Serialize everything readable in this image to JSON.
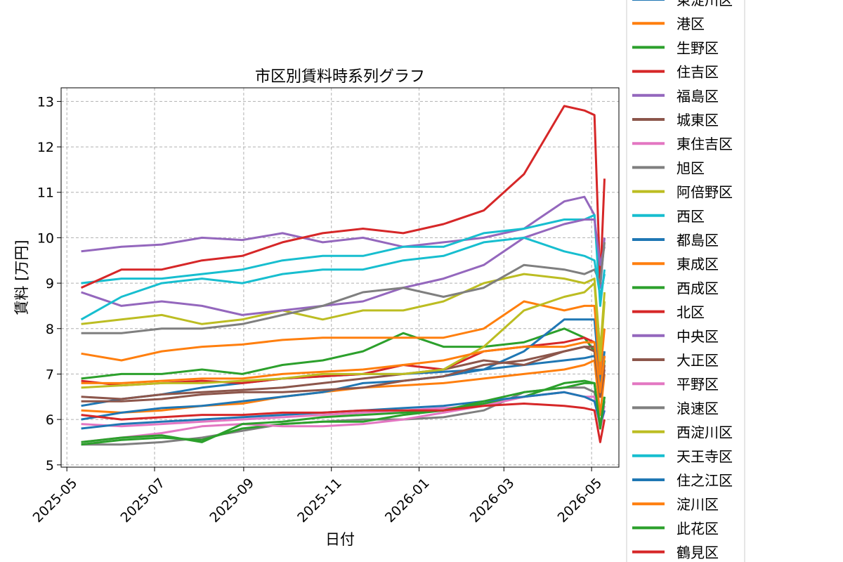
{
  "chart_data": {
    "type": "line",
    "title": "市区別賃料時系列グラフ",
    "xlabel": "日付",
    "ylabel": "賃料 [万円]",
    "ylim": [
      4.95,
      13.3
    ],
    "yticks": [
      5,
      6,
      7,
      8,
      9,
      10,
      11,
      12,
      13
    ],
    "xlim": [
      "2025-04-27",
      "2026-05-20"
    ],
    "xticks": [
      "2025-05",
      "2025-07",
      "2025-09",
      "2025-11",
      "2026-01",
      "2026-03",
      "2026-05"
    ],
    "grid": true,
    "legend_position": "outside-right",
    "x": [
      "2025-05-11",
      "2025-06-08",
      "2025-07-06",
      "2025-08-03",
      "2025-08-31",
      "2025-09-28",
      "2025-10-26",
      "2025-11-23",
      "2025-12-21",
      "2026-01-18",
      "2026-02-15",
      "2026-03-15",
      "2026-04-12",
      "2026-04-26",
      "2026-05-03",
      "2026-05-07",
      "2026-05-10"
    ],
    "series": [
      {
        "name": "東淀川区",
        "color": "#1f77b4",
        "values": [
          6.3,
          6.45,
          6.55,
          6.7,
          6.8,
          6.9,
          6.95,
          7.0,
          7.0,
          7.05,
          7.1,
          7.2,
          7.3,
          7.35,
          7.4,
          6.9,
          7.3
        ]
      },
      {
        "name": "港区",
        "color": "#ff7f0e",
        "values": [
          6.2,
          6.15,
          6.2,
          6.3,
          6.35,
          6.5,
          6.6,
          6.7,
          6.75,
          6.8,
          6.9,
          7.0,
          7.1,
          7.2,
          7.3,
          6.1,
          7.0
        ]
      },
      {
        "name": "生野区",
        "color": "#2ca02c",
        "values": [
          6.9,
          7.0,
          7.0,
          7.1,
          7.0,
          7.2,
          7.3,
          7.5,
          7.9,
          7.6,
          7.6,
          7.7,
          8.0,
          7.8,
          7.5,
          6.5,
          7.3
        ]
      },
      {
        "name": "住吉区",
        "color": "#d62728",
        "values": [
          6.85,
          6.75,
          6.8,
          6.85,
          6.8,
          6.9,
          6.95,
          7.0,
          7.2,
          7.1,
          7.5,
          7.6,
          7.7,
          7.8,
          7.7,
          6.6,
          7.4
        ]
      },
      {
        "name": "福島区",
        "color": "#9467bd",
        "values": [
          9.7,
          9.8,
          9.85,
          10.0,
          9.95,
          10.1,
          9.9,
          10.0,
          9.8,
          9.9,
          10.0,
          10.2,
          10.8,
          10.9,
          10.5,
          8.9,
          10.0
        ]
      },
      {
        "name": "城東区",
        "color": "#8c564b",
        "values": [
          6.5,
          6.45,
          6.55,
          6.6,
          6.65,
          6.7,
          6.8,
          6.9,
          7.0,
          7.1,
          7.3,
          7.2,
          7.5,
          7.6,
          7.5,
          6.5,
          7.2
        ]
      },
      {
        "name": "東住吉区",
        "color": "#e377c2",
        "values": [
          5.9,
          5.85,
          5.9,
          5.95,
          6.0,
          6.05,
          6.1,
          6.15,
          6.2,
          6.25,
          6.3,
          6.5,
          6.6,
          6.5,
          6.4,
          5.9,
          6.3
        ]
      },
      {
        "name": "旭区",
        "color": "#7f7f7f",
        "values": [
          5.45,
          5.45,
          5.5,
          5.6,
          5.75,
          5.9,
          5.95,
          6.0,
          6.0,
          6.05,
          6.2,
          6.6,
          6.7,
          6.7,
          6.6,
          5.9,
          6.4
        ]
      },
      {
        "name": "阿倍野区",
        "color": "#bcbd22",
        "values": [
          8.1,
          8.2,
          8.3,
          8.1,
          8.2,
          8.4,
          8.2,
          8.4,
          8.4,
          8.6,
          9.0,
          9.2,
          9.1,
          9.0,
          9.1,
          7.5,
          8.8
        ]
      },
      {
        "name": "西区",
        "color": "#17becf",
        "values": [
          9.0,
          9.1,
          9.1,
          9.2,
          9.3,
          9.5,
          9.6,
          9.6,
          9.8,
          9.8,
          10.1,
          10.2,
          10.4,
          10.4,
          10.5,
          8.5,
          9.3
        ]
      },
      {
        "name": "都島区",
        "color": "#1f77b4",
        "values": [
          6.0,
          6.15,
          6.25,
          6.3,
          6.4,
          6.5,
          6.6,
          6.8,
          6.85,
          6.95,
          7.1,
          7.5,
          8.2,
          8.2,
          8.2,
          6.7,
          7.5
        ]
      },
      {
        "name": "東成区",
        "color": "#ff7f0e",
        "values": [
          7.45,
          7.3,
          7.5,
          7.6,
          7.65,
          7.75,
          7.8,
          7.8,
          7.8,
          7.8,
          8.0,
          8.6,
          8.4,
          8.5,
          8.5,
          7.0,
          8.0
        ]
      },
      {
        "name": "西成区",
        "color": "#2ca02c",
        "values": [
          5.45,
          5.55,
          5.6,
          5.55,
          5.8,
          5.9,
          5.95,
          5.95,
          6.1,
          6.2,
          6.35,
          6.5,
          6.8,
          6.85,
          6.8,
          5.8,
          6.5
        ]
      },
      {
        "name": "北区",
        "color": "#d62728",
        "values": [
          8.9,
          9.3,
          9.3,
          9.5,
          9.6,
          9.9,
          10.1,
          10.2,
          10.1,
          10.3,
          10.6,
          11.4,
          12.9,
          12.8,
          12.7,
          9.0,
          11.3
        ]
      },
      {
        "name": "中央区",
        "color": "#9467bd",
        "values": [
          8.8,
          8.5,
          8.6,
          8.5,
          8.3,
          8.4,
          8.5,
          8.6,
          8.9,
          9.1,
          9.4,
          10.0,
          10.3,
          10.4,
          10.4,
          9.4,
          9.8
        ]
      },
      {
        "name": "大正区",
        "color": "#8c564b",
        "values": [
          6.4,
          6.4,
          6.45,
          6.55,
          6.6,
          6.6,
          6.65,
          6.7,
          6.85,
          6.95,
          7.2,
          7.3,
          7.5,
          7.6,
          7.6,
          6.5,
          7.1
        ]
      },
      {
        "name": "平野区",
        "color": "#e377c2",
        "values": [
          5.5,
          5.6,
          5.7,
          5.85,
          5.9,
          5.85,
          5.85,
          5.9,
          6.0,
          6.15,
          6.3,
          6.5,
          6.6,
          6.5,
          6.5,
          5.8,
          6.2
        ]
      },
      {
        "name": "浪速区",
        "color": "#7f7f7f",
        "values": [
          7.9,
          7.9,
          8.0,
          8.0,
          8.1,
          8.3,
          8.5,
          8.8,
          8.9,
          8.7,
          8.9,
          9.4,
          9.3,
          9.2,
          9.3,
          9.0,
          9.9
        ]
      },
      {
        "name": "西淀川区",
        "color": "#bcbd22",
        "values": [
          6.7,
          6.75,
          6.8,
          6.8,
          6.85,
          6.9,
          7.0,
          7.0,
          7.0,
          7.1,
          7.6,
          8.4,
          8.7,
          8.8,
          9.0,
          7.3,
          8.6
        ]
      },
      {
        "name": "天王寺区",
        "color": "#17becf",
        "values": [
          8.2,
          8.7,
          9.0,
          9.1,
          9.0,
          9.2,
          9.3,
          9.3,
          9.5,
          9.6,
          9.9,
          10.0,
          9.7,
          9.6,
          9.5,
          8.7,
          9.2
        ]
      },
      {
        "name": "住之江区",
        "color": "#1f77b4",
        "values": [
          5.8,
          5.9,
          5.95,
          6.0,
          6.05,
          6.1,
          6.15,
          6.2,
          6.25,
          6.3,
          6.4,
          6.5,
          6.6,
          6.5,
          6.4,
          5.9,
          6.2
        ]
      },
      {
        "name": "淀川区",
        "color": "#ff7f0e",
        "values": [
          6.8,
          6.8,
          6.85,
          6.9,
          6.9,
          7.0,
          7.05,
          7.1,
          7.2,
          7.3,
          7.5,
          7.6,
          7.6,
          7.7,
          7.7,
          6.6,
          7.4
        ]
      },
      {
        "name": "此花区",
        "color": "#2ca02c",
        "values": [
          5.5,
          5.6,
          5.65,
          5.5,
          5.9,
          5.95,
          6.05,
          6.1,
          6.15,
          6.2,
          6.4,
          6.6,
          6.7,
          6.8,
          6.8,
          5.8,
          6.5
        ]
      },
      {
        "name": "鶴見区",
        "color": "#d62728",
        "values": [
          6.1,
          6.0,
          6.05,
          6.1,
          6.1,
          6.15,
          6.15,
          6.2,
          6.2,
          6.2,
          6.3,
          6.35,
          6.3,
          6.25,
          6.2,
          5.5,
          6.0
        ]
      }
    ]
  }
}
